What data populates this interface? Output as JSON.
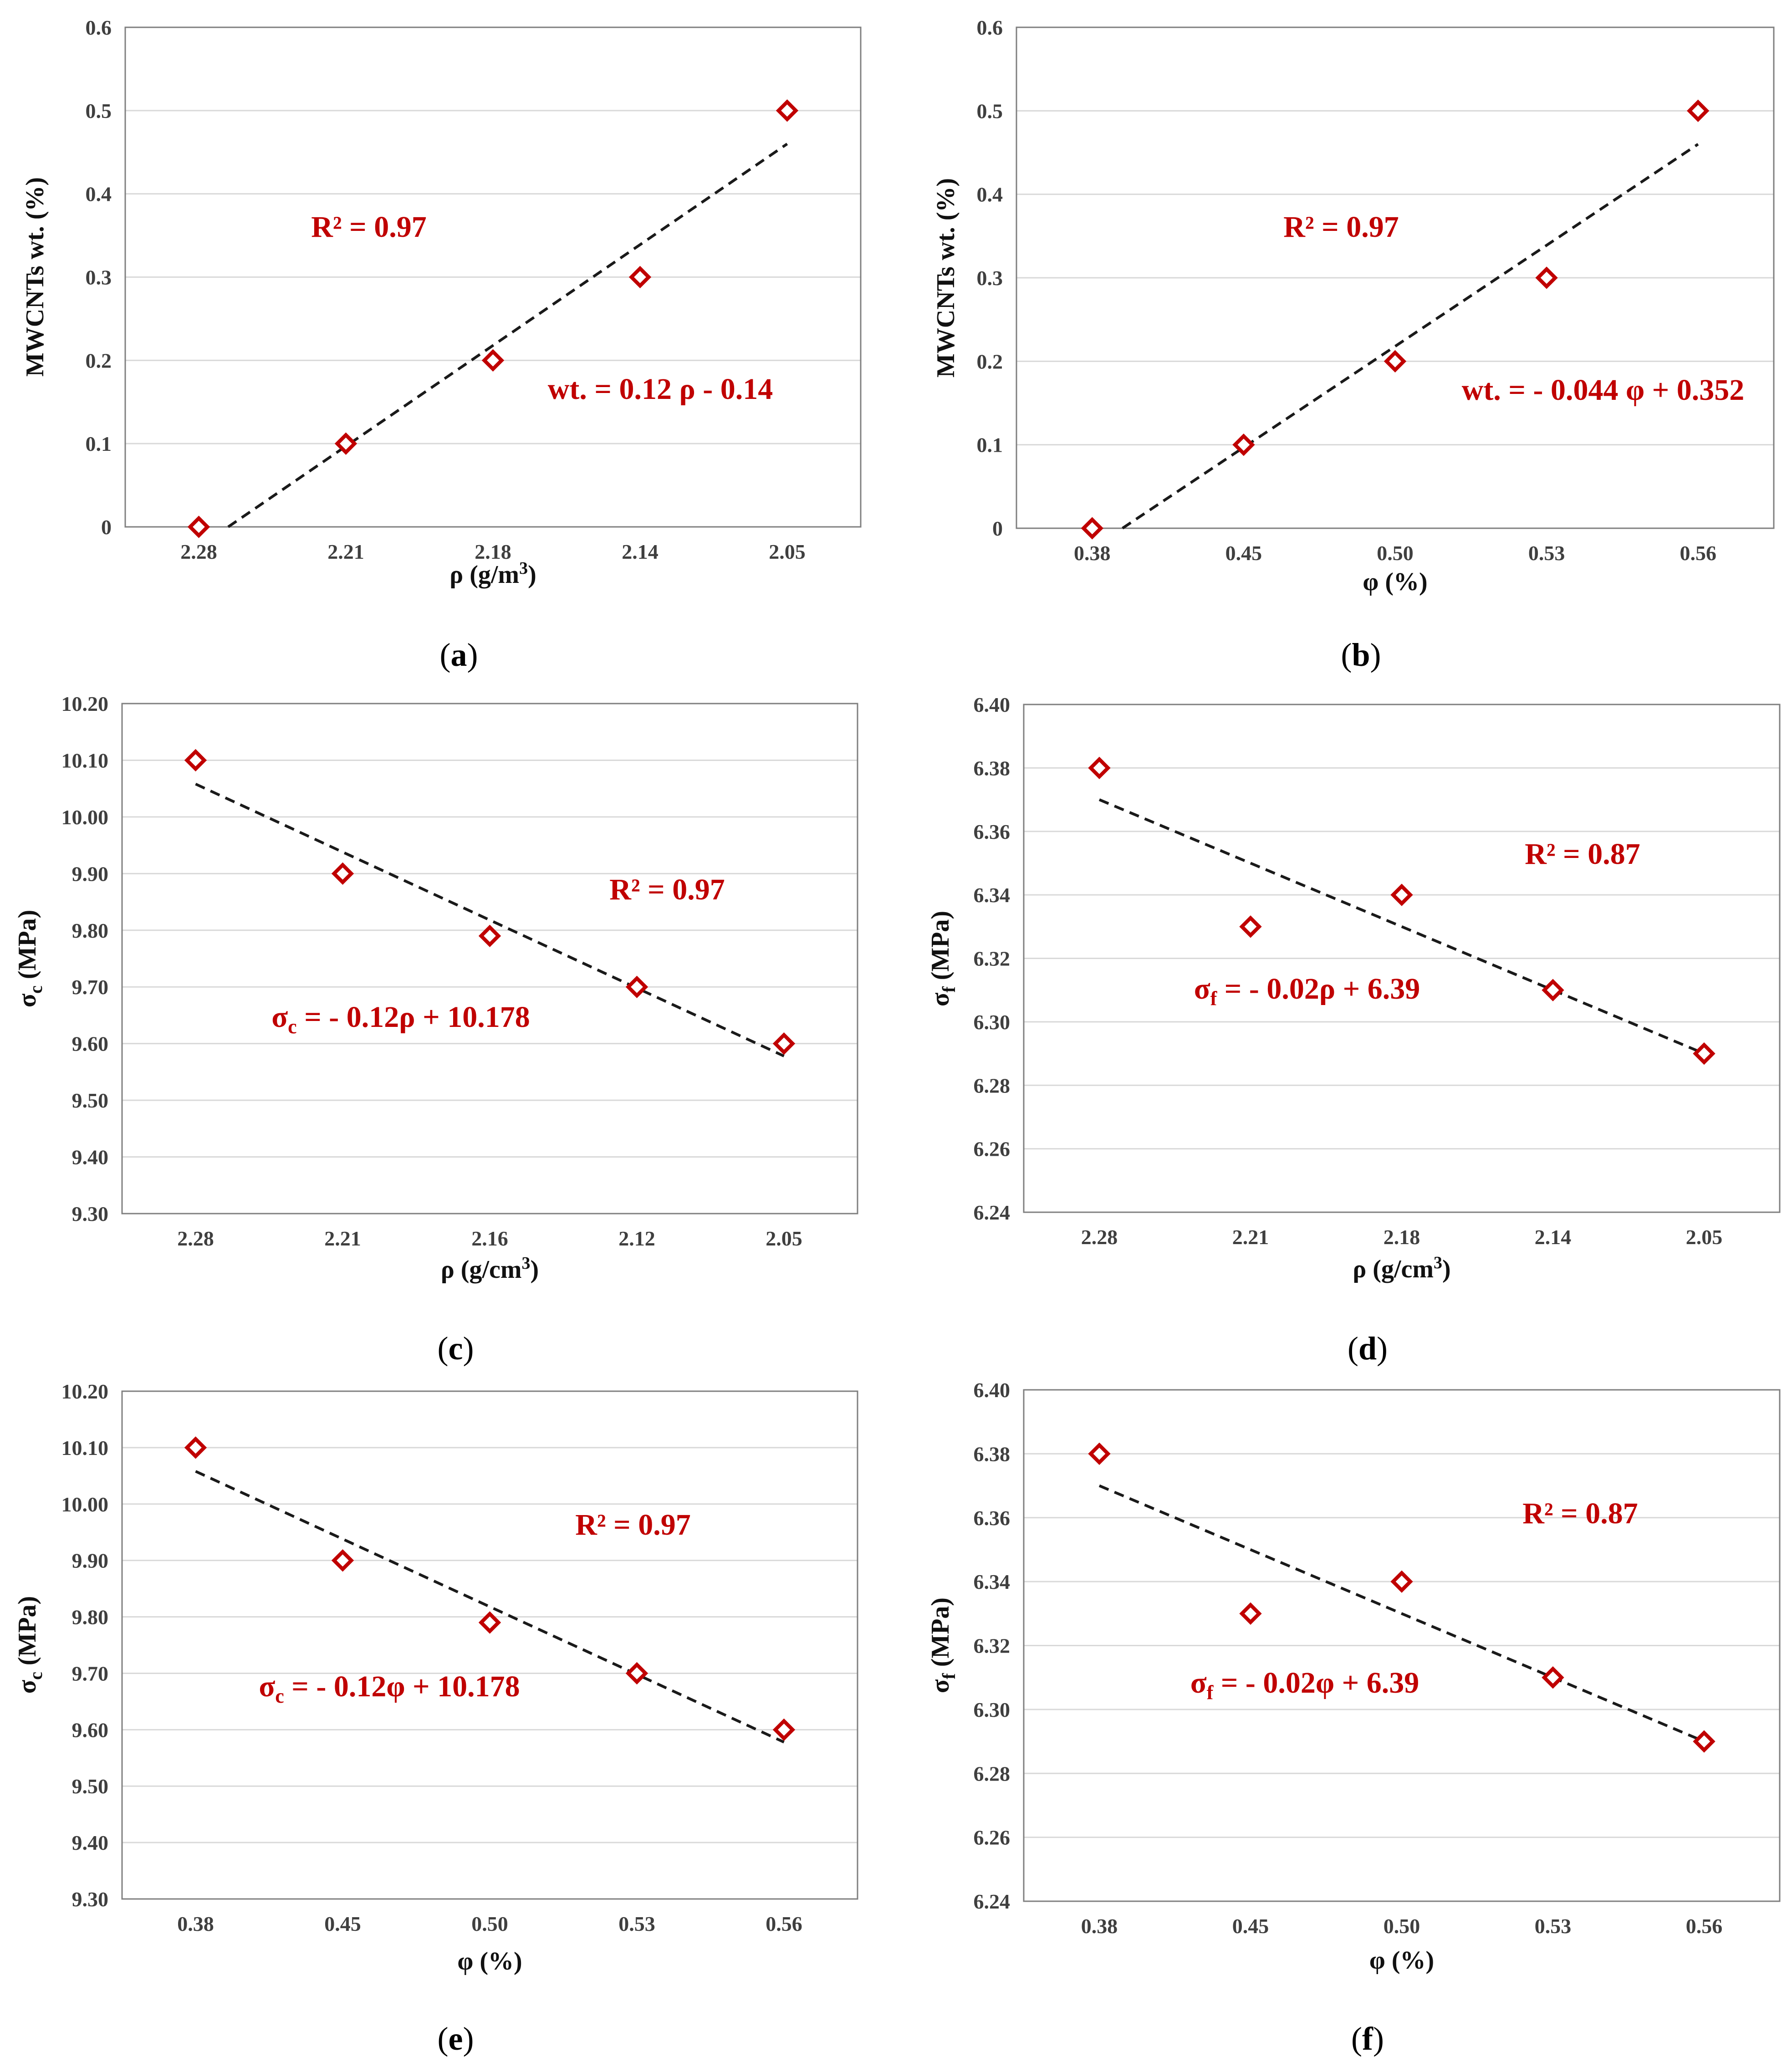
{
  "chart_data": [
    {
      "type": "scatter",
      "panel": "a",
      "caption": {
        "open": "(",
        "letter": "a",
        "close": ")"
      },
      "categories": [
        "2.28",
        "2.21",
        "2.18",
        "2.14",
        "2.05"
      ],
      "values": [
        0,
        0.1,
        0.2,
        0.3,
        0.5
      ],
      "ylim": [
        0,
        0.6
      ],
      "yticks": [
        "0",
        "0.1",
        "0.2",
        "0.3",
        "0.4",
        "0.5",
        "0.6"
      ],
      "xlabel": {
        "main": "ρ (g/m",
        "sup": "3",
        "end": ")"
      },
      "ylabel": {
        "main": "MWCNTs wt. (%)",
        "sub": "",
        "end": ""
      },
      "trendline": {
        "start": [
          1.2,
          0
        ],
        "end": [
          5,
          0.46
        ]
      },
      "annotations": [
        {
          "text": "R² = 0.97"
        },
        {
          "text": "wt. = 0.12 ρ - 0.14"
        }
      ],
      "grid": "horizontal",
      "marker_color": "#c00000"
    },
    {
      "type": "scatter",
      "panel": "b",
      "caption": {
        "open": "(",
        "letter": "b",
        "close": ")"
      },
      "categories": [
        "0.38",
        "0.45",
        "0.50",
        "0.53",
        "0.56"
      ],
      "values": [
        0,
        0.1,
        0.2,
        0.3,
        0.5
      ],
      "ylim": [
        0,
        0.6
      ],
      "yticks": [
        "0",
        "0.1",
        "0.2",
        "0.3",
        "0.4",
        "0.5",
        "0.6"
      ],
      "xlabel": {
        "main": "φ (%)",
        "sup": "",
        "end": ""
      },
      "ylabel": {
        "main": "MWCNTs wt. (%)",
        "sub": "",
        "end": ""
      },
      "trendline": {
        "start": [
          1.2,
          0
        ],
        "end": [
          5,
          0.46
        ]
      },
      "annotations": [
        {
          "text": "R² = 0.97"
        },
        {
          "text": "wt. = - 0.044 φ + 0.352"
        }
      ],
      "grid": "horizontal",
      "marker_color": "#c00000"
    },
    {
      "type": "scatter",
      "panel": "c",
      "caption": {
        "open": "(",
        "letter": "c",
        "close": ")"
      },
      "categories": [
        "2.28",
        "2.21",
        "2.16",
        "2.12",
        "2.05"
      ],
      "values": [
        10.1,
        9.9,
        9.79,
        9.7,
        9.6
      ],
      "ylim": [
        9.3,
        10.2
      ],
      "yticks": [
        "9.30",
        "9.40",
        "9.50",
        "9.60",
        "9.70",
        "9.80",
        "9.90",
        "10.00",
        "10.10",
        "10.20"
      ],
      "xlabel": {
        "main": "ρ (g/cm",
        "sup": "3",
        "end": ")"
      },
      "ylabel": {
        "main": "σ",
        "sub": "c",
        "end": " (MPa)"
      },
      "trendline": {
        "start": [
          1,
          10.058
        ],
        "end": [
          5,
          9.578
        ]
      },
      "annotations": [
        {
          "text": "R² = 0.97"
        },
        {
          "text": "σ",
          "sub": "c",
          "rest": " = - 0.12ρ + 10.178"
        }
      ],
      "grid": "horizontal",
      "marker_color": "#c00000"
    },
    {
      "type": "scatter",
      "panel": "d",
      "caption": {
        "open": "(",
        "letter": "d",
        "close": ")"
      },
      "categories": [
        "2.28",
        "2.21",
        "2.18",
        "2.14",
        "2.05"
      ],
      "values": [
        6.38,
        6.33,
        6.34,
        6.31,
        6.29
      ],
      "ylim": [
        6.24,
        6.4
      ],
      "yticks": [
        "6.24",
        "6.26",
        "6.28",
        "6.30",
        "6.32",
        "6.34",
        "6.36",
        "6.38",
        "6.40"
      ],
      "xlabel": {
        "main": "ρ (g/cm",
        "sup": "3",
        "end": ")"
      },
      "ylabel": {
        "main": "σ",
        "sub": "f",
        "end": " (MPa)"
      },
      "trendline": {
        "start": [
          1,
          6.37
        ],
        "end": [
          5,
          6.29
        ]
      },
      "annotations": [
        {
          "text": "R² = 0.87"
        },
        {
          "text": "σ",
          "sub": "f",
          "rest": " = - 0.02ρ + 6.39"
        }
      ],
      "grid": "horizontal",
      "marker_color": "#c00000"
    },
    {
      "type": "scatter",
      "panel": "e",
      "caption": {
        "open": "(",
        "letter": "e",
        "close": ")"
      },
      "categories": [
        "0.38",
        "0.45",
        "0.50",
        "0.53",
        "0.56"
      ],
      "values": [
        10.1,
        9.9,
        9.79,
        9.7,
        9.6
      ],
      "ylim": [
        9.3,
        10.2
      ],
      "yticks": [
        "9.30",
        "9.40",
        "9.50",
        "9.60",
        "9.70",
        "9.80",
        "9.90",
        "10.00",
        "10.10",
        "10.20"
      ],
      "xlabel": {
        "main": "φ (%)",
        "sup": "",
        "end": ""
      },
      "ylabel": {
        "main": "σ",
        "sub": "c",
        "end": " (MPa)"
      },
      "trendline": {
        "start": [
          1,
          10.058
        ],
        "end": [
          5,
          9.578
        ]
      },
      "annotations": [
        {
          "text": "R² = 0.97"
        },
        {
          "text": "σ",
          "sub": "c",
          "rest": " = - 0.12φ + 10.178"
        }
      ],
      "grid": "horizontal",
      "marker_color": "#c00000"
    },
    {
      "type": "scatter",
      "panel": "f",
      "caption": {
        "open": "(",
        "letter": "f",
        "close": ")"
      },
      "categories": [
        "0.38",
        "0.45",
        "0.50",
        "0.53",
        "0.56"
      ],
      "values": [
        6.38,
        6.33,
        6.34,
        6.31,
        6.29
      ],
      "ylim": [
        6.24,
        6.4
      ],
      "yticks": [
        "6.24",
        "6.26",
        "6.28",
        "6.30",
        "6.32",
        "6.34",
        "6.36",
        "6.38",
        "6.40"
      ],
      "xlabel": {
        "main": "φ (%)",
        "sup": "",
        "end": ""
      },
      "ylabel": {
        "main": "σ",
        "sub": "f",
        "end": " (MPa)"
      },
      "trendline": {
        "start": [
          1,
          6.37
        ],
        "end": [
          5,
          6.29
        ]
      },
      "annotations": [
        {
          "text": "R² = 0.87"
        },
        {
          "text": "σ",
          "sub": "f",
          "rest": " = - 0.02φ + 6.39"
        }
      ],
      "grid": "horizontal",
      "marker_color": "#c00000"
    }
  ]
}
